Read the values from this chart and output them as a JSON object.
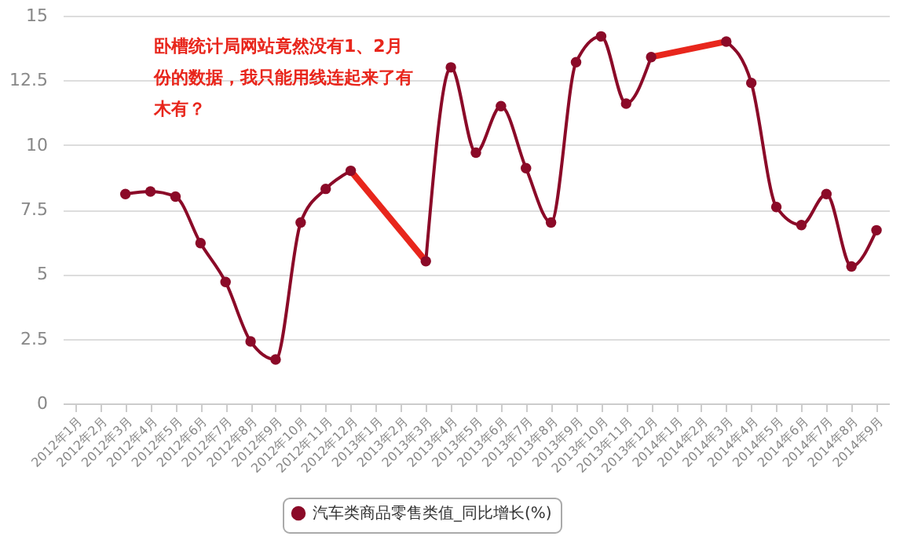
{
  "chart_data": {
    "type": "line",
    "categories": [
      "2012年1月",
      "2012年2月",
      "2012年3月",
      "2012年4月",
      "2012年5月",
      "2012年6月",
      "2012年7月",
      "2012年8月",
      "2012年9月",
      "2012年10月",
      "2012年11月",
      "2012年12月",
      "2013年1月",
      "2013年2月",
      "2013年3月",
      "2013年4月",
      "2013年5月",
      "2013年6月",
      "2013年7月",
      "2013年8月",
      "2013年9月",
      "2013年10月",
      "2013年11月",
      "2013年12月",
      "2014年1月",
      "2014年2月",
      "2014年3月",
      "2014年4月",
      "2014年5月",
      "2014年6月",
      "2014年7月",
      "2014年8月",
      "2014年9月"
    ],
    "series": [
      {
        "name": "汽车类商品零售类值_同比增长(%)",
        "color": "#8b0a28",
        "values": [
          null,
          null,
          8.1,
          8.2,
          8.0,
          6.2,
          4.7,
          2.4,
          1.7,
          7.0,
          8.3,
          9.0,
          null,
          null,
          5.5,
          13.0,
          9.7,
          11.5,
          9.1,
          7.0,
          13.2,
          14.2,
          11.6,
          13.4,
          null,
          null,
          14.0,
          12.4,
          7.6,
          6.9,
          8.1,
          5.3,
          6.7
        ]
      },
      {
        "color": "#e8261c",
        "marker": "none",
        "x": [
          "2012年12月",
          "2013年3月"
        ],
        "values": [
          9.0,
          5.5
        ]
      },
      {
        "color": "#e8261c",
        "marker": "none",
        "x": [
          "2013年12月",
          "2014年3月"
        ],
        "values": [
          13.4,
          14.0
        ]
      }
    ],
    "ylim": [
      0,
      15
    ],
    "yticks": [
      0,
      2.5,
      5,
      7.5,
      10,
      12.5,
      15
    ],
    "grid": "y",
    "legend": "bottom",
    "marker": "circle",
    "annotations": [
      "卧槽统计局网站竟然没有1、2月份的数据，我只能用线连起来了有木有？"
    ]
  }
}
